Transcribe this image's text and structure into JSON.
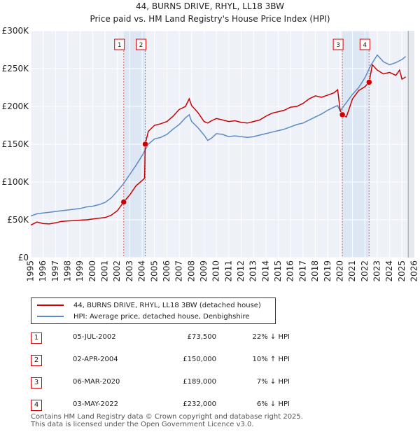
{
  "chart_data": {
    "type": "line",
    "title": "44, BURNS DRIVE, RHYL, LL18 3BW",
    "subtitle": "Price paid vs. HM Land Registry's House Price Index (HPI)",
    "xlabel": "",
    "ylabel": "",
    "xlim": [
      1995,
      2026
    ],
    "ylim": [
      0,
      300000
    ],
    "y_ticks": [
      0,
      50000,
      100000,
      150000,
      200000,
      250000,
      300000
    ],
    "y_tick_labels": [
      "£0",
      "£50K",
      "£100K",
      "£150K",
      "£200K",
      "£250K",
      "£300K"
    ],
    "x_ticks": [
      1995,
      1996,
      1997,
      1998,
      1999,
      2000,
      2001,
      2002,
      2003,
      2004,
      2005,
      2006,
      2007,
      2008,
      2009,
      2010,
      2011,
      2012,
      2013,
      2014,
      2015,
      2016,
      2017,
      2018,
      2019,
      2020,
      2021,
      2022,
      2023,
      2024,
      2025,
      2026
    ],
    "x_tick_labels": [
      "1995",
      "1996",
      "1997",
      "1998",
      "1999",
      "2000",
      "2001",
      "2002",
      "2003",
      "2004",
      "2005",
      "2006",
      "2007",
      "2008",
      "2009",
      "2010",
      "2011",
      "2012",
      "2013",
      "2014",
      "2015",
      "2016",
      "2017",
      "2018",
      "2019",
      "2020",
      "2021",
      "2022",
      "2023",
      "2024",
      "2025",
      "2026"
    ],
    "grid": true,
    "shaded_regions": [
      [
        2002.51,
        2004.25
      ],
      [
        2020.18,
        2022.34
      ]
    ],
    "data_end_marker": 2025.5,
    "series": [
      {
        "name": "44, BURNS DRIVE, RHYL, LL18 3BW (detached house)",
        "color": "#cc0000",
        "x": [
          1995,
          1995.5,
          1996,
          1996.5,
          1997,
          1997.5,
          1998,
          1998.5,
          1999,
          1999.5,
          2000,
          2000.5,
          2001,
          2001.5,
          2002,
          2002.51,
          2003,
          2003.5,
          2004,
          2004.2,
          2004.25,
          2004.5,
          2005,
          2005.5,
          2006,
          2006.5,
          2007,
          2007.5,
          2007.8,
          2008,
          2008.5,
          2009,
          2009.3,
          2009.6,
          2010,
          2010.5,
          2011,
          2011.5,
          2012,
          2012.5,
          2013,
          2013.5,
          2014,
          2014.5,
          2015,
          2015.5,
          2016,
          2016.5,
          2017,
          2017.5,
          2018,
          2018.5,
          2019,
          2019.5,
          2019.8,
          2020,
          2020.18,
          2020.5,
          2021,
          2021.5,
          2022,
          2022.34,
          2022.6,
          2023,
          2023.5,
          2024,
          2024.5,
          2024.8,
          2025,
          2025.3
        ],
        "y": [
          43000,
          47000,
          45000,
          44500,
          46000,
          48000,
          48500,
          49000,
          49500,
          50000,
          51000,
          52000,
          53000,
          56000,
          62000,
          73500,
          83000,
          95000,
          102000,
          105000,
          150000,
          167000,
          175000,
          177000,
          180000,
          187000,
          196000,
          200000,
          210000,
          201000,
          192000,
          180000,
          178000,
          181000,
          184000,
          182000,
          180000,
          181000,
          179000,
          178000,
          180000,
          182000,
          187000,
          191000,
          193000,
          195000,
          199000,
          200000,
          204000,
          210000,
          214000,
          212000,
          215000,
          218000,
          222000,
          195000,
          189000,
          186000,
          210000,
          221000,
          226000,
          232000,
          255000,
          248000,
          243000,
          245000,
          241000,
          248000,
          236000,
          239000
        ]
      },
      {
        "name": "HPI: Average price, detached house, Denbighshire",
        "color": "#5b8ac6",
        "x": [
          1995,
          1995.5,
          1996,
          1996.5,
          1997,
          1997.5,
          1998,
          1998.5,
          1999,
          1999.5,
          2000,
          2000.5,
          2001,
          2001.5,
          2002,
          2002.5,
          2003,
          2003.5,
          2004,
          2004.5,
          2005,
          2005.5,
          2006,
          2006.5,
          2007,
          2007.5,
          2007.8,
          2008,
          2008.5,
          2009,
          2009.3,
          2009.6,
          2010,
          2010.5,
          2011,
          2011.5,
          2012,
          2012.5,
          2013,
          2013.5,
          2014,
          2014.5,
          2015,
          2015.5,
          2016,
          2016.5,
          2017,
          2017.5,
          2018,
          2018.5,
          2019,
          2019.5,
          2019.8,
          2020,
          2020.5,
          2021,
          2021.5,
          2022,
          2022.5,
          2023,
          2023.5,
          2024,
          2024.5,
          2025,
          2025.3
        ],
        "y": [
          55000,
          58000,
          59000,
          60000,
          61000,
          62000,
          63000,
          64000,
          65000,
          67000,
          68000,
          70000,
          73000,
          79000,
          88000,
          98000,
          110000,
          122000,
          135000,
          150000,
          157000,
          159000,
          163000,
          170000,
          176000,
          185000,
          189000,
          180000,
          172000,
          162000,
          155000,
          158000,
          164000,
          163000,
          160000,
          161000,
          160000,
          159000,
          160000,
          162000,
          164000,
          166000,
          168000,
          170000,
          173000,
          176000,
          178000,
          182000,
          186000,
          190000,
          195000,
          199000,
          201000,
          194000,
          205000,
          216000,
          225000,
          238000,
          255000,
          268000,
          259000,
          255000,
          258000,
          262000,
          266000
        ]
      }
    ],
    "transactions": [
      {
        "num": "1",
        "date": "05-JUL-2002",
        "price": "£73,500",
        "pct": "22% ↓ HPI",
        "x": 2002.51,
        "y": 73500
      },
      {
        "num": "2",
        "date": "02-APR-2004",
        "price": "£150,000",
        "pct": "10% ↑ HPI",
        "x": 2004.25,
        "y": 150000
      },
      {
        "num": "3",
        "date": "06-MAR-2020",
        "price": "£189,000",
        "pct": "7% ↓ HPI",
        "x": 2020.18,
        "y": 189000
      },
      {
        "num": "4",
        "date": "03-MAY-2022",
        "price": "£232,000",
        "pct": "6% ↓ HPI",
        "x": 2022.34,
        "y": 232000
      }
    ]
  },
  "legend": {
    "property_label": "44, BURNS DRIVE, RHYL, LL18 3BW (detached house)",
    "hpi_label": "HPI: Average price, detached house, Denbighshire"
  },
  "footer": {
    "line1": "Contains HM Land Registry data © Crown copyright and database right 2025.",
    "line2": "This data is licensed under the Open Government Licence v3.0."
  }
}
